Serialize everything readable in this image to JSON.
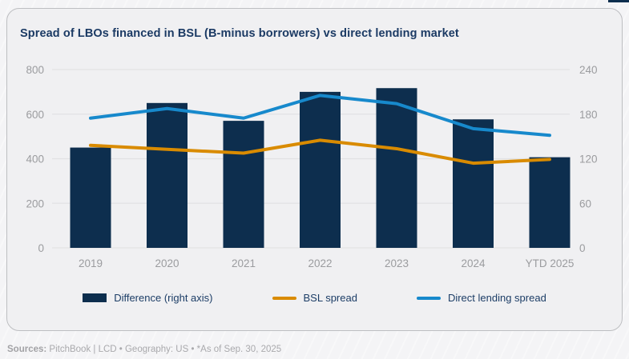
{
  "card": {
    "title": "Spread of LBOs financed in BSL (B-minus borrowers) vs direct lending market"
  },
  "legend": {
    "items": [
      {
        "label": "Difference (right axis)",
        "type": "bar",
        "color": "#0d2e4e"
      },
      {
        "label": "BSL spread",
        "type": "line",
        "color": "#d98b00"
      },
      {
        "label": "Direct lending spread",
        "type": "line",
        "color": "#1789cc"
      }
    ]
  },
  "footer": {
    "sources_label": "Sources:",
    "sources_text": " PitchBook | LCD • Geography: US • *As of Sep. 30, 2025"
  },
  "chart_data": {
    "type": "bar",
    "subtype": "combo-bar-line",
    "title": "Spread of LBOs financed in BSL (B-minus borrowers) vs direct lending market",
    "categories": [
      "2019",
      "2020",
      "2021",
      "2022",
      "2023",
      "2024",
      "YTD 2025"
    ],
    "series": [
      {
        "name": "Difference (right axis)",
        "type": "bar",
        "axis": "right",
        "color": "#0d2e4e",
        "values": [
          135,
          195,
          171,
          210,
          215,
          173,
          122
        ]
      },
      {
        "name": "BSL spread",
        "type": "line",
        "axis": "left",
        "color": "#d98b00",
        "values": [
          460,
          442,
          425,
          483,
          445,
          380,
          397
        ]
      },
      {
        "name": "Direct lending spread",
        "type": "line",
        "axis": "left",
        "color": "#1789cc",
        "values": [
          582,
          625,
          582,
          684,
          647,
          535,
          505
        ]
      }
    ],
    "left_axis": {
      "min": 0,
      "max": 800,
      "ticks": [
        0,
        200,
        400,
        600,
        800
      ]
    },
    "right_axis": {
      "min": 0,
      "max": 240,
      "ticks": [
        0,
        60,
        120,
        180,
        240
      ]
    },
    "grid": "horizontal",
    "gridline_color": "#e2e2e4",
    "axis_text_color": "#9b9c9f",
    "legend_position": "bottom"
  }
}
